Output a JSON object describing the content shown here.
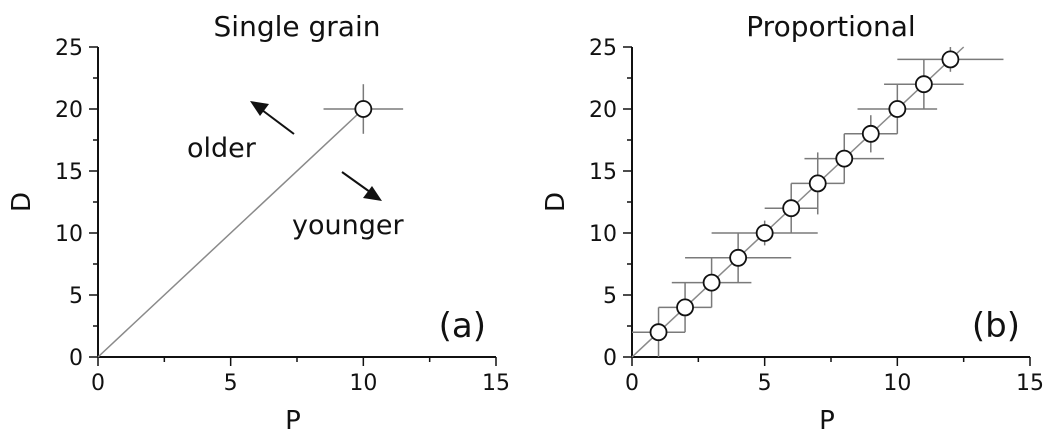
{
  "chart_data": [
    {
      "type": "scatter",
      "title": "Single grain",
      "panel_label": "(a)",
      "xlabel": "P",
      "ylabel": "D",
      "xlim": [
        0,
        15
      ],
      "ylim": [
        0,
        25
      ],
      "xticks": [
        "0",
        "5",
        "10",
        "15"
      ],
      "yticks": [
        "0",
        "5",
        "10",
        "15",
        "20",
        "25"
      ],
      "points": [
        {
          "x": 10,
          "y": 20,
          "xerr": 1.5,
          "yerr": 2
        }
      ],
      "line": [
        [
          0,
          0
        ],
        [
          10,
          20
        ]
      ],
      "annotations": [
        {
          "text": "older",
          "direction": "up-left"
        },
        {
          "text": "younger",
          "direction": "down-right"
        }
      ],
      "grid": false
    },
    {
      "type": "scatter",
      "title": "Proportional",
      "panel_label": "(b)",
      "xlabel": "P",
      "ylabel": "D",
      "xlim": [
        0,
        15
      ],
      "ylim": [
        0,
        25
      ],
      "xticks": [
        "0",
        "5",
        "10",
        "15"
      ],
      "yticks": [
        "0",
        "5",
        "10",
        "15",
        "20",
        "25"
      ],
      "points": [
        {
          "x": 1,
          "y": 2,
          "xerr": 1,
          "yerr": 2
        },
        {
          "x": 2,
          "y": 4,
          "xerr": 1,
          "yerr": 2
        },
        {
          "x": 3,
          "y": 6,
          "xerr": 1.5,
          "yerr": 2
        },
        {
          "x": 4,
          "y": 8,
          "xerr": 2,
          "yerr": 2
        },
        {
          "x": 5,
          "y": 10,
          "xerr": 2,
          "yerr": 1
        },
        {
          "x": 6,
          "y": 12,
          "xerr": 1,
          "yerr": 2
        },
        {
          "x": 7,
          "y": 14,
          "xerr": 1,
          "yerr": 2.5
        },
        {
          "x": 8,
          "y": 16,
          "xerr": 1.5,
          "yerr": 2
        },
        {
          "x": 9,
          "y": 18,
          "xerr": 1,
          "yerr": 1.5
        },
        {
          "x": 10,
          "y": 20,
          "xerr": 1.5,
          "yerr": 2
        },
        {
          "x": 11,
          "y": 22,
          "xerr": 1.5,
          "yerr": 2
        },
        {
          "x": 12,
          "y": 24,
          "xerr": 2,
          "yerr": 1
        }
      ],
      "line": [
        [
          0,
          0
        ],
        [
          12.5,
          25
        ]
      ],
      "grid": false
    }
  ]
}
